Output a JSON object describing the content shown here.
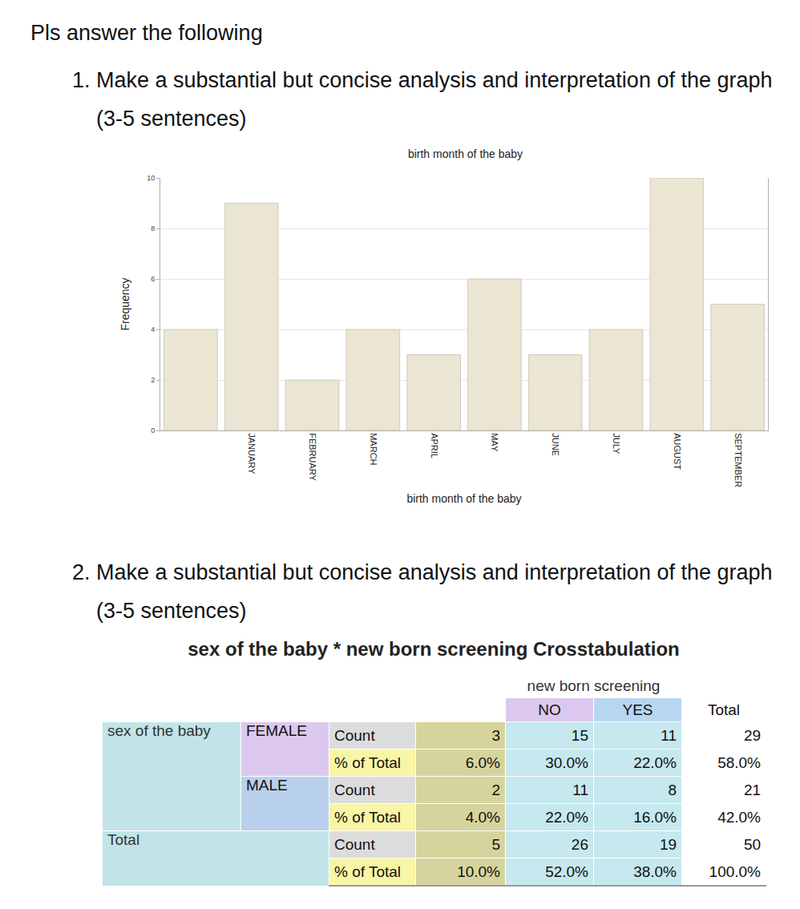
{
  "intro": "Pls answer the following",
  "questions": [
    {
      "number": "1.",
      "text": "Make a substantial but concise analysis and interpretation of the graph (3-5 sentences)"
    },
    {
      "number": "2.",
      "text": "Make a substantial but concise analysis and interpretation of the graph (3-5 sentences)"
    }
  ],
  "chart_data": {
    "type": "bar",
    "title": "birth month of the baby",
    "x_label": "birth month of the baby",
    "y_label": "Frequency",
    "categories": [
      null,
      "JANUARY",
      "FEBRUARY",
      "MARCH",
      "APRIL",
      "MAY",
      "JUNE",
      "JULY",
      "AUGUST",
      "SEPTEMBER"
    ],
    "values": [
      4,
      9,
      2,
      4,
      3,
      6,
      3,
      4,
      10,
      5
    ],
    "color": "#ebe6d3",
    "ylim": [
      0,
      10
    ],
    "yticks": [
      0,
      2,
      4,
      6,
      8,
      10
    ],
    "grid": true
  },
  "table": {
    "title": "sex of the baby * new born screening Crosstabulation",
    "column_group": "new born screening",
    "columns": [
      null,
      "NO",
      "YES",
      "Total"
    ],
    "row_variable": "sex of the baby",
    "rows": [
      {
        "group": "FEMALE",
        "stats": [
          {
            "label": "Count",
            "cells": [
              "3",
              "15",
              "11",
              "29"
            ]
          },
          {
            "label": "% of Total",
            "cells": [
              "6.0%",
              "30.0%",
              "22.0%",
              "58.0%"
            ]
          }
        ]
      },
      {
        "group": "MALE",
        "stats": [
          {
            "label": "Count",
            "cells": [
              "2",
              "11",
              "8",
              "21"
            ]
          },
          {
            "label": "% of Total",
            "cells": [
              "4.0%",
              "22.0%",
              "16.0%",
              "42.0%"
            ]
          }
        ]
      }
    ],
    "total": {
      "group": "Total",
      "stats": [
        {
          "label": "Count",
          "cells": [
            "5",
            "26",
            "19",
            "50"
          ]
        },
        {
          "label": "% of Total",
          "cells": [
            "10.0%",
            "52.0%",
            "38.0%",
            "100.0%"
          ]
        }
      ]
    }
  }
}
